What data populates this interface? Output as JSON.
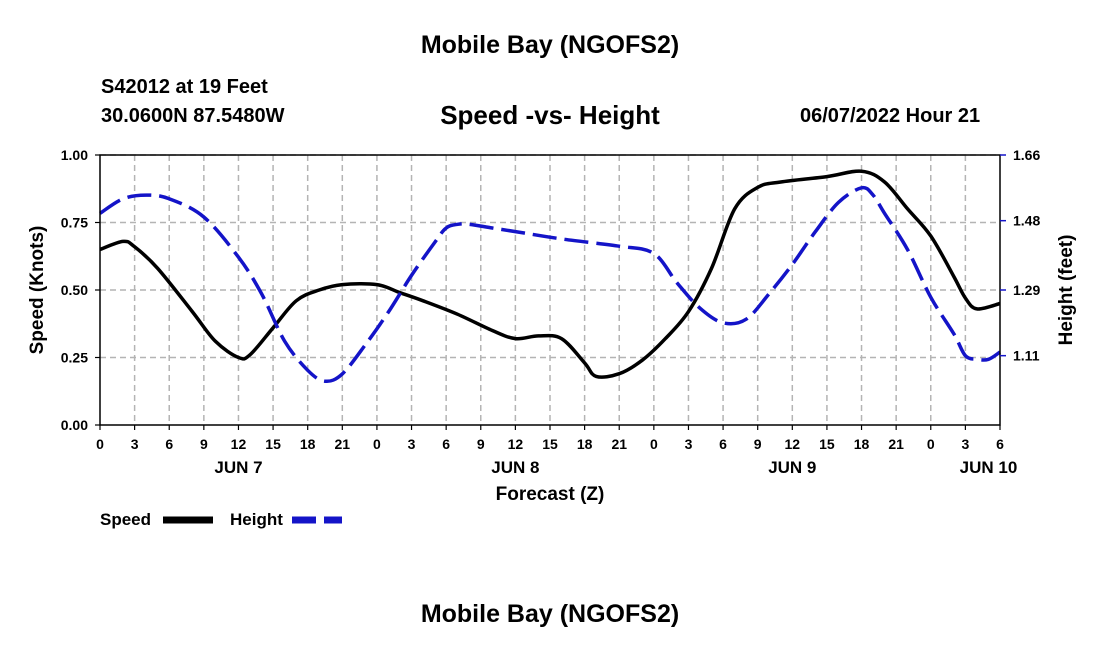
{
  "header": {
    "title_top": "Mobile Bay (NGOFS2)",
    "station": "S42012 at 19 Feet",
    "coords": "30.0600N  87.5480W",
    "datetime": "06/07/2022 Hour 21",
    "title_bottom": "Mobile Bay (NGOFS2)"
  },
  "chart_data": {
    "type": "line",
    "title": "Speed -vs- Height",
    "xlabel": "Forecast (Z)",
    "ylabel": "Speed (Knots)",
    "y2label": "Height (feet)",
    "x_unit": "hours since Jun 7 00Z",
    "xlim": [
      0,
      78
    ],
    "ylim": [
      0,
      1
    ],
    "y2lim": [
      0.92,
      1.66
    ],
    "x_ticks": [
      0,
      3,
      6,
      9,
      12,
      15,
      18,
      21,
      24,
      27,
      30,
      33,
      36,
      39,
      42,
      45,
      48,
      51,
      54,
      57,
      60,
      63,
      66,
      69,
      72,
      75,
      78
    ],
    "x_tick_labels": [
      "0",
      "3",
      "6",
      "9",
      "12",
      "15",
      "18",
      "21",
      "0",
      "3",
      "6",
      "9",
      "12",
      "15",
      "18",
      "21",
      "0",
      "3",
      "6",
      "9",
      "12",
      "15",
      "18",
      "21",
      "0",
      "3",
      "6"
    ],
    "date_labels": [
      {
        "x": 12,
        "label": "JUN 7"
      },
      {
        "x": 36,
        "label": "JUN 8"
      },
      {
        "x": 60,
        "label": "JUN 9"
      },
      {
        "x": 77,
        "label": "JUN 10"
      }
    ],
    "y_ticks": [
      0.0,
      0.25,
      0.5,
      0.75,
      1.0
    ],
    "y_tick_labels": [
      "0.00",
      "0.25",
      "0.50",
      "0.75",
      "1.00"
    ],
    "y2_ticks": [
      1.11,
      1.29,
      1.48,
      1.66
    ],
    "y2_tick_labels": [
      "1.11",
      "1.29",
      "1.48",
      "1.66"
    ],
    "grid": true,
    "legend_position": "bottom-left",
    "series": [
      {
        "name": "Speed",
        "axis": "left",
        "color": "#000000",
        "dash": "solid",
        "x": [
          0,
          2,
          3,
          5,
          8,
          10,
          12,
          13,
          15,
          17,
          19,
          21,
          24,
          26,
          28,
          31,
          34,
          36,
          38,
          40,
          42,
          43,
          45,
          47,
          49,
          51,
          53,
          55,
          57,
          59,
          63,
          66,
          68,
          70,
          72,
          74,
          75,
          76,
          78
        ],
        "values": [
          0.65,
          0.68,
          0.66,
          0.58,
          0.42,
          0.31,
          0.25,
          0.26,
          0.36,
          0.46,
          0.5,
          0.52,
          0.52,
          0.49,
          0.46,
          0.41,
          0.35,
          0.32,
          0.33,
          0.32,
          0.23,
          0.18,
          0.19,
          0.24,
          0.32,
          0.42,
          0.58,
          0.8,
          0.88,
          0.9,
          0.92,
          0.94,
          0.9,
          0.8,
          0.7,
          0.55,
          0.47,
          0.43,
          0.45
        ]
      },
      {
        "name": "Height",
        "axis": "right",
        "color": "#1414c8",
        "dash": "long-dash",
        "x": [
          0,
          2,
          4,
          6,
          9,
          12,
          14,
          16,
          18,
          19.5,
          21,
          23,
          25,
          27,
          29,
          30,
          31,
          32,
          34,
          36,
          40,
          45,
          48,
          50,
          52,
          54,
          56,
          58,
          60,
          62,
          64,
          66,
          67,
          68,
          70,
          72,
          74,
          75,
          76,
          77,
          78
        ],
        "values": [
          1.5,
          1.54,
          1.55,
          1.54,
          1.49,
          1.38,
          1.28,
          1.15,
          1.07,
          1.04,
          1.06,
          1.14,
          1.23,
          1.33,
          1.42,
          1.46,
          1.47,
          1.47,
          1.46,
          1.45,
          1.43,
          1.41,
          1.39,
          1.31,
          1.24,
          1.2,
          1.21,
          1.28,
          1.36,
          1.45,
          1.53,
          1.57,
          1.55,
          1.5,
          1.4,
          1.27,
          1.17,
          1.11,
          1.1,
          1.1,
          1.12
        ]
      }
    ]
  }
}
